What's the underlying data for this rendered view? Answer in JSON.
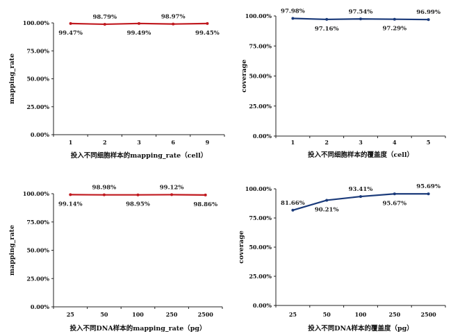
{
  "chart_data": [
    {
      "type": "line",
      "categories": [
        "1",
        "2",
        "3",
        "6",
        "9"
      ],
      "series": [
        {
          "values": [
            99.47,
            98.79,
            99.49,
            98.97,
            99.45
          ]
        }
      ],
      "data_labels": [
        "99.47%",
        "98.79%",
        "99.49%",
        "98.97%",
        "99.45%"
      ],
      "label_positions": [
        "below",
        "above",
        "below",
        "above",
        "below"
      ],
      "xlabel": "投入不同细胞样本的mapping_rate（cell）",
      "ylabel": "mapping_rate",
      "ylim": [
        0,
        100
      ],
      "yticks": [
        "0.00%",
        "25.00%",
        "50.00%",
        "75.00%",
        "100.00%"
      ],
      "color": "#c0191f",
      "grid": false
    },
    {
      "type": "line",
      "categories": [
        "1",
        "2",
        "3",
        "4",
        "5"
      ],
      "series": [
        {
          "values": [
            97.98,
            97.16,
            97.54,
            97.29,
            96.99
          ]
        }
      ],
      "data_labels": [
        "97.98%",
        "97.16%",
        "97.54%",
        "97.29%",
        "96.99%"
      ],
      "label_positions": [
        "above",
        "below",
        "above",
        "below",
        "above"
      ],
      "xlabel": "投入不同细胞样本的覆盖度（cell）",
      "ylabel": "coverage",
      "ylim": [
        0,
        100
      ],
      "yticks": [
        "0.00%",
        "25.00%",
        "50.00%",
        "75.00%",
        "100.00%"
      ],
      "color": "#1a3a7a",
      "grid": false
    },
    {
      "type": "line",
      "categories": [
        "25",
        "50",
        "100",
        "250",
        "2500"
      ],
      "series": [
        {
          "values": [
            99.14,
            98.98,
            98.95,
            99.12,
            98.86
          ]
        }
      ],
      "data_labels": [
        "99.14%",
        "98.98%",
        "98.95%",
        "99.12%",
        "98.86%"
      ],
      "label_positions": [
        "below",
        "above",
        "below",
        "above",
        "below"
      ],
      "xlabel": "投入不同DNA样本的mapping_rate（pg）",
      "ylabel": "mapping_rate",
      "ylim": [
        0,
        100
      ],
      "yticks": [
        "0.00%",
        "25.00%",
        "50.00%",
        "75.00%",
        "100.00%"
      ],
      "color": "#c0191f",
      "grid": false
    },
    {
      "type": "line",
      "categories": [
        "25",
        "50",
        "100",
        "250",
        "2500"
      ],
      "series": [
        {
          "values": [
            81.66,
            90.21,
            93.41,
            95.67,
            95.69
          ]
        }
      ],
      "data_labels": [
        "81.66%",
        "90.21%",
        "93.41%",
        "95.67%",
        "95.69%"
      ],
      "label_positions": [
        "above",
        "below",
        "above",
        "below",
        "above"
      ],
      "xlabel": "投入不同DNA样本的覆盖度（pg）",
      "ylabel": "coverage",
      "ylim": [
        0,
        100
      ],
      "yticks": [
        "0.00%",
        "25.00%",
        "50.00%",
        "75.00%",
        "100.00%"
      ],
      "color": "#1a3a7a",
      "grid": false
    }
  ]
}
